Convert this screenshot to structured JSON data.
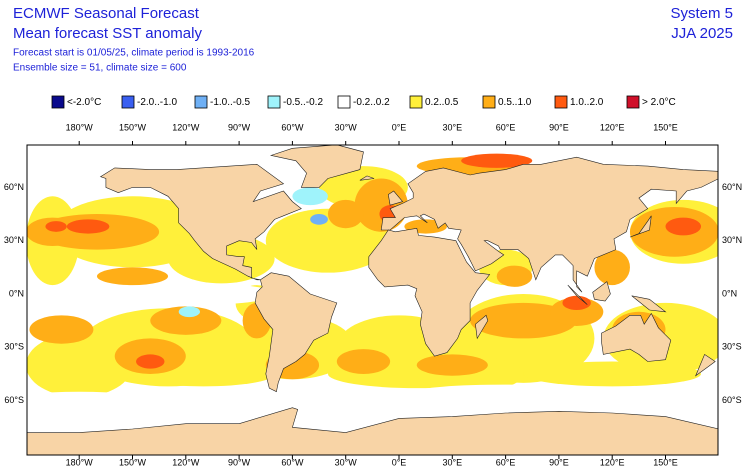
{
  "header": {
    "title": "ECMWF Seasonal Forecast",
    "subtitle": "Mean forecast SST anomaly",
    "details": [
      "Forecast start is 01/05/25, climate period is 1993-2016",
      "Ensemble size = 51, climate size = 600"
    ],
    "system": "System 5",
    "season": "JJA 2025"
  },
  "legend": {
    "items": [
      {
        "label": "<-2.0°C",
        "color": "#0a0a8c"
      },
      {
        "label": "-2.0..-1.0",
        "color": "#3a5ff0"
      },
      {
        "label": "-1.0..-0.5",
        "color": "#6fb0f5"
      },
      {
        "label": "-0.5..-0.2",
        "color": "#9ff3fb"
      },
      {
        "label": "-0.2..0.2",
        "color": "#ffffff"
      },
      {
        "label": "0.2..0.5",
        "color": "#fff03a"
      },
      {
        "label": "0.5..1.0",
        "color": "#ffae17"
      },
      {
        "label": "1.0..2.0",
        "color": "#ff5a10"
      },
      {
        "label": "> 2.0°C",
        "color": "#d0102a"
      }
    ]
  },
  "axes": {
    "lon_labels": [
      "180°W",
      "150°W",
      "120°W",
      "90°W",
      "60°W",
      "30°W",
      "0°E",
      "30°E",
      "60°E",
      "90°E",
      "120°E",
      "150°E"
    ],
    "lat_labels": [
      "60°N",
      "30°N",
      "0°N",
      "30°S",
      "60°S"
    ]
  }
}
